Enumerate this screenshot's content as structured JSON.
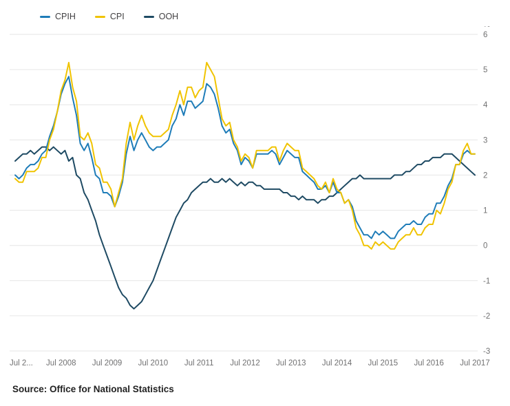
{
  "legend": {
    "items": [
      "CPIH",
      "CPI",
      "OOH"
    ]
  },
  "footer": {
    "source": "Source: Office for National Statistics"
  },
  "chart_data": {
    "type": "line",
    "title": "",
    "unit_label": "%",
    "ylim": [
      -3,
      6
    ],
    "y_ticks": [
      6,
      5,
      4,
      3,
      2,
      1,
      0,
      -1,
      -2,
      -3
    ],
    "grid": true,
    "grid_color": "#e6e6e6",
    "legend_position": "top-left",
    "x_tick_labels": [
      "Jul 2...",
      "Jul 2008",
      "Jul 2009",
      "Jul 2010",
      "Jul 2011",
      "Jul 2012",
      "Jul 2013",
      "Jul 2014",
      "Jul 2015",
      "Jul 2016",
      "Jul 2017"
    ],
    "x_tick_indices": [
      0,
      12,
      24,
      36,
      48,
      60,
      72,
      84,
      96,
      108,
      120
    ],
    "series": [
      {
        "name": "CPIH",
        "color": "#1e7cb8",
        "values": [
          2.0,
          1.9,
          2.0,
          2.2,
          2.3,
          2.3,
          2.4,
          2.6,
          2.7,
          3.1,
          3.4,
          3.8,
          4.3,
          4.6,
          4.8,
          4.2,
          3.7,
          2.9,
          2.7,
          2.9,
          2.5,
          2.0,
          1.9,
          1.5,
          1.5,
          1.4,
          1.1,
          1.4,
          1.8,
          2.6,
          3.1,
          2.7,
          3.0,
          3.2,
          3.0,
          2.8,
          2.7,
          2.8,
          2.8,
          2.9,
          3.0,
          3.4,
          3.6,
          4.0,
          3.7,
          4.1,
          4.1,
          3.9,
          4.0,
          4.1,
          4.6,
          4.5,
          4.3,
          3.9,
          3.4,
          3.2,
          3.3,
          2.9,
          2.7,
          2.3,
          2.5,
          2.4,
          2.2,
          2.6,
          2.6,
          2.6,
          2.6,
          2.7,
          2.6,
          2.3,
          2.5,
          2.7,
          2.6,
          2.5,
          2.5,
          2.1,
          2.0,
          1.9,
          1.8,
          1.6,
          1.6,
          1.7,
          1.5,
          1.8,
          1.5,
          1.5,
          1.2,
          1.3,
          1.1,
          0.7,
          0.5,
          0.3,
          0.3,
          0.2,
          0.4,
          0.3,
          0.4,
          0.3,
          0.2,
          0.2,
          0.4,
          0.5,
          0.6,
          0.6,
          0.7,
          0.6,
          0.6,
          0.8,
          0.9,
          0.9,
          1.2,
          1.2,
          1.4,
          1.7,
          1.9,
          2.3,
          2.3,
          2.6,
          2.7,
          2.6,
          2.6
        ]
      },
      {
        "name": "CPI",
        "color": "#f0c300",
        "values": [
          1.9,
          1.8,
          1.8,
          2.1,
          2.1,
          2.1,
          2.2,
          2.5,
          2.5,
          3.0,
          3.3,
          3.8,
          4.4,
          4.7,
          5.2,
          4.5,
          4.1,
          3.1,
          3.0,
          3.2,
          2.9,
          2.3,
          2.2,
          1.8,
          1.8,
          1.6,
          1.1,
          1.5,
          1.9,
          2.9,
          3.5,
          3.0,
          3.4,
          3.7,
          3.4,
          3.2,
          3.1,
          3.1,
          3.1,
          3.2,
          3.3,
          3.7,
          4.0,
          4.4,
          4.0,
          4.5,
          4.5,
          4.2,
          4.4,
          4.5,
          5.2,
          5.0,
          4.8,
          4.2,
          3.6,
          3.4,
          3.5,
          3.0,
          2.8,
          2.4,
          2.6,
          2.5,
          2.2,
          2.7,
          2.7,
          2.7,
          2.7,
          2.8,
          2.8,
          2.4,
          2.7,
          2.9,
          2.8,
          2.7,
          2.7,
          2.2,
          2.1,
          2.0,
          1.9,
          1.7,
          1.6,
          1.8,
          1.5,
          1.9,
          1.6,
          1.5,
          1.2,
          1.3,
          1.0,
          0.5,
          0.3,
          0.0,
          0.0,
          -0.1,
          0.1,
          0.0,
          0.1,
          0.0,
          -0.1,
          -0.1,
          0.1,
          0.2,
          0.3,
          0.3,
          0.5,
          0.3,
          0.3,
          0.5,
          0.6,
          0.6,
          1.0,
          0.9,
          1.2,
          1.6,
          1.8,
          2.3,
          2.3,
          2.7,
          2.9,
          2.6,
          2.6
        ]
      },
      {
        "name": "OOH",
        "color": "#1e4a63",
        "values": [
          2.4,
          2.5,
          2.6,
          2.6,
          2.7,
          2.6,
          2.7,
          2.8,
          2.8,
          2.7,
          2.8,
          2.7,
          2.6,
          2.7,
          2.4,
          2.5,
          2.0,
          1.9,
          1.5,
          1.3,
          1.0,
          0.7,
          0.3,
          0.0,
          -0.3,
          -0.6,
          -0.9,
          -1.2,
          -1.4,
          -1.5,
          -1.7,
          -1.8,
          -1.7,
          -1.6,
          -1.4,
          -1.2,
          -1.0,
          -0.7,
          -0.4,
          -0.1,
          0.2,
          0.5,
          0.8,
          1.0,
          1.2,
          1.3,
          1.5,
          1.6,
          1.7,
          1.8,
          1.8,
          1.9,
          1.8,
          1.8,
          1.9,
          1.8,
          1.9,
          1.8,
          1.7,
          1.8,
          1.7,
          1.8,
          1.8,
          1.7,
          1.7,
          1.6,
          1.6,
          1.6,
          1.6,
          1.6,
          1.5,
          1.5,
          1.4,
          1.4,
          1.3,
          1.4,
          1.3,
          1.3,
          1.3,
          1.2,
          1.3,
          1.3,
          1.4,
          1.4,
          1.5,
          1.6,
          1.7,
          1.8,
          1.9,
          1.9,
          2.0,
          1.9,
          1.9,
          1.9,
          1.9,
          1.9,
          1.9,
          1.9,
          1.9,
          2.0,
          2.0,
          2.0,
          2.1,
          2.1,
          2.2,
          2.3,
          2.3,
          2.4,
          2.4,
          2.5,
          2.5,
          2.5,
          2.6,
          2.6,
          2.6,
          2.5,
          2.4,
          2.3,
          2.2,
          2.1,
          2.0
        ]
      }
    ]
  }
}
